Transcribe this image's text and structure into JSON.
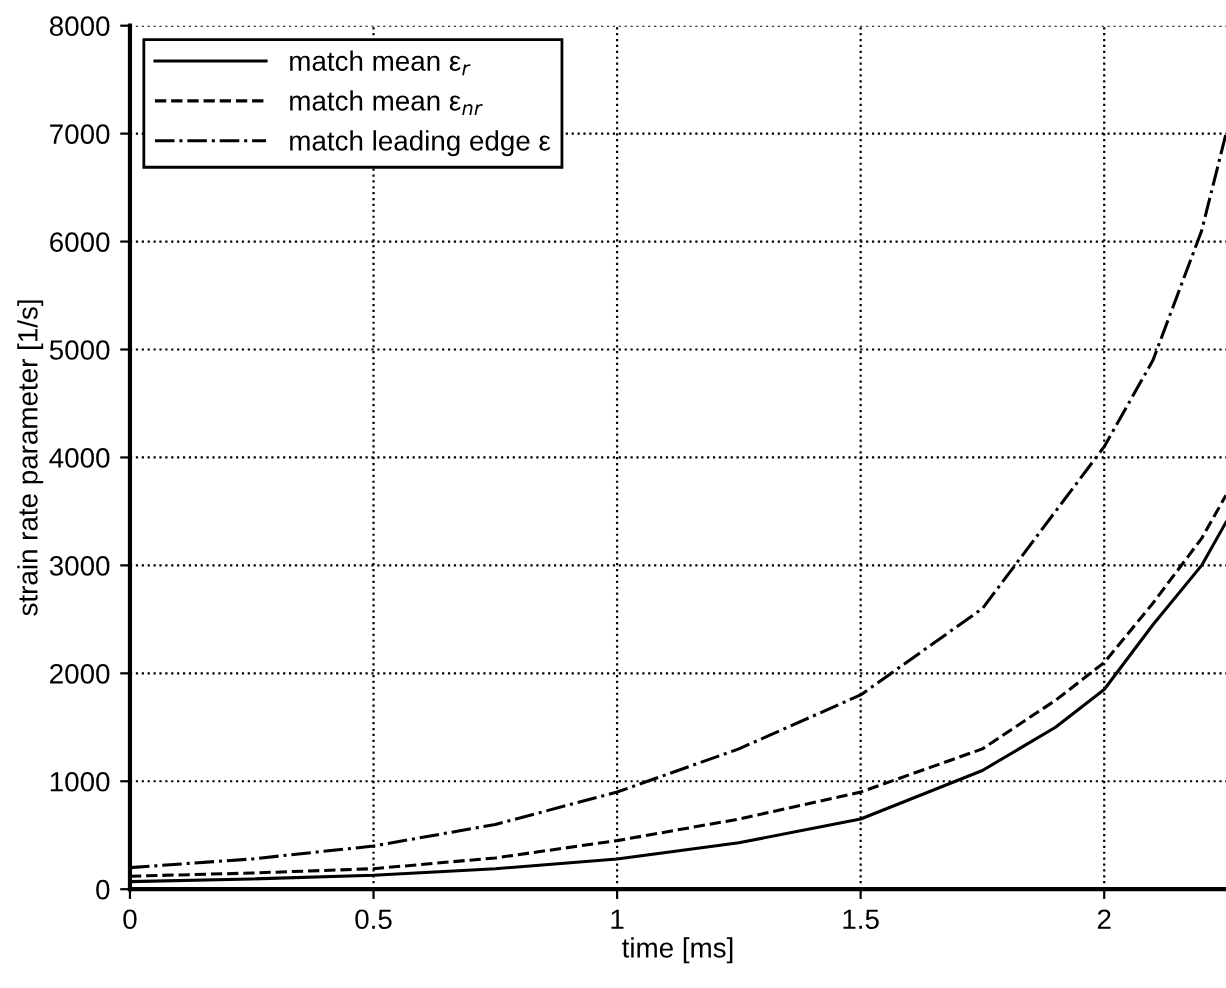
{
  "chart_data": {
    "type": "line",
    "xlabel": "time [ms]",
    "ylabel": "strain rate parameter [1/s]",
    "x": [
      0,
      0.25,
      0.5,
      0.75,
      1,
      1.25,
      1.5,
      1.75,
      1.9,
      2,
      2.1,
      2.2,
      2.25
    ],
    "series": [
      {
        "name": "match mean ε$_{r}$",
        "color": "#000000",
        "line_style": "solid",
        "values": [
          70,
          95,
          130,
          190,
          280,
          430,
          650,
          1100,
          1500,
          1850,
          2450,
          3000,
          3400
        ]
      },
      {
        "name": "match mean ε$_{nr}$",
        "color": "#000000",
        "line_style": "dashed",
        "values": [
          120,
          150,
          190,
          290,
          450,
          650,
          900,
          1300,
          1750,
          2100,
          2650,
          3250,
          3650
        ]
      },
      {
        "name": "match leading edge ε",
        "color": "#000000",
        "line_style": "dashdot",
        "values": [
          200,
          280,
          400,
          600,
          900,
          1300,
          1800,
          2600,
          3500,
          4100,
          4900,
          6100,
          7000
        ]
      }
    ],
    "xlim": [
      0,
      2.25
    ],
    "ylim": [
      0,
      8000
    ],
    "xticks": [
      0,
      0.5,
      1,
      1.5,
      2
    ],
    "yticks": [
      0,
      1000,
      2000,
      3000,
      4000,
      5000,
      6000,
      7000,
      8000
    ],
    "grid": true,
    "legend": "top left"
  }
}
